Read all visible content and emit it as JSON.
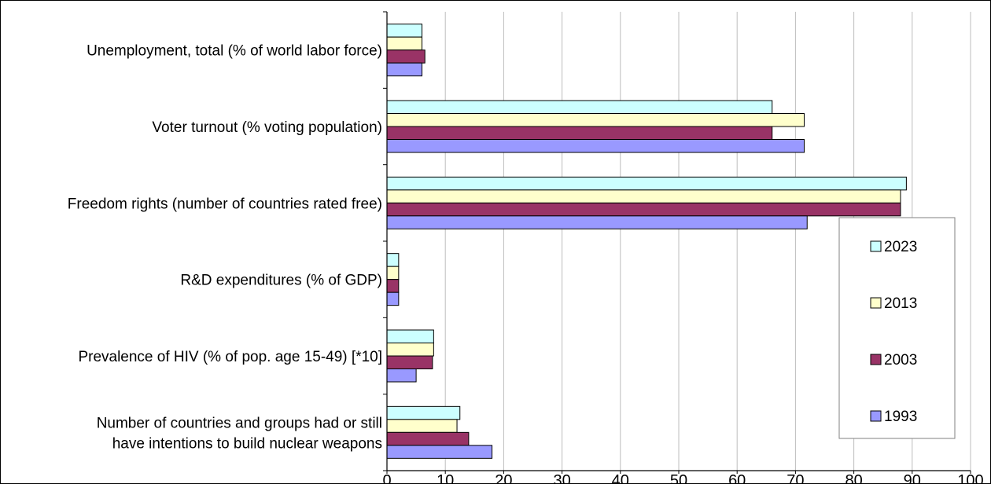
{
  "chart_data": {
    "type": "bar",
    "orientation": "horizontal",
    "title": "",
    "xlabel": "",
    "ylabel": "",
    "xlim": [
      0,
      100
    ],
    "x_ticks": [
      0,
      10,
      20,
      30,
      40,
      50,
      60,
      70,
      80,
      90,
      100
    ],
    "grid": true,
    "legend_position": "right",
    "categories": [
      {
        "lines": [
          "Unemployment, total (% of world labor force)"
        ]
      },
      {
        "lines": [
          "Voter turnout (% voting population)"
        ]
      },
      {
        "lines": [
          "Freedom rights (number of countries rated free)"
        ]
      },
      {
        "lines": [
          "R&D expenditures (% of GDP)"
        ]
      },
      {
        "lines": [
          "Prevalence of HIV (% of pop. age 15-49) [*10]"
        ]
      },
      {
        "lines": [
          "Number of countries and groups had or still",
          "have intentions to build nuclear weapons"
        ]
      }
    ],
    "series": [
      {
        "name": "2023",
        "color": "#ccffff",
        "values": [
          6,
          66,
          89,
          2,
          8,
          12.5
        ]
      },
      {
        "name": "2013",
        "color": "#ffffcc",
        "values": [
          6,
          71.5,
          88,
          2,
          8,
          12
        ]
      },
      {
        "name": "2003",
        "color": "#993366",
        "values": [
          6.5,
          66,
          88,
          2,
          7.8,
          14
        ]
      },
      {
        "name": "1993",
        "color": "#9999ff",
        "values": [
          6,
          71.5,
          72,
          2,
          5,
          18
        ]
      }
    ]
  }
}
